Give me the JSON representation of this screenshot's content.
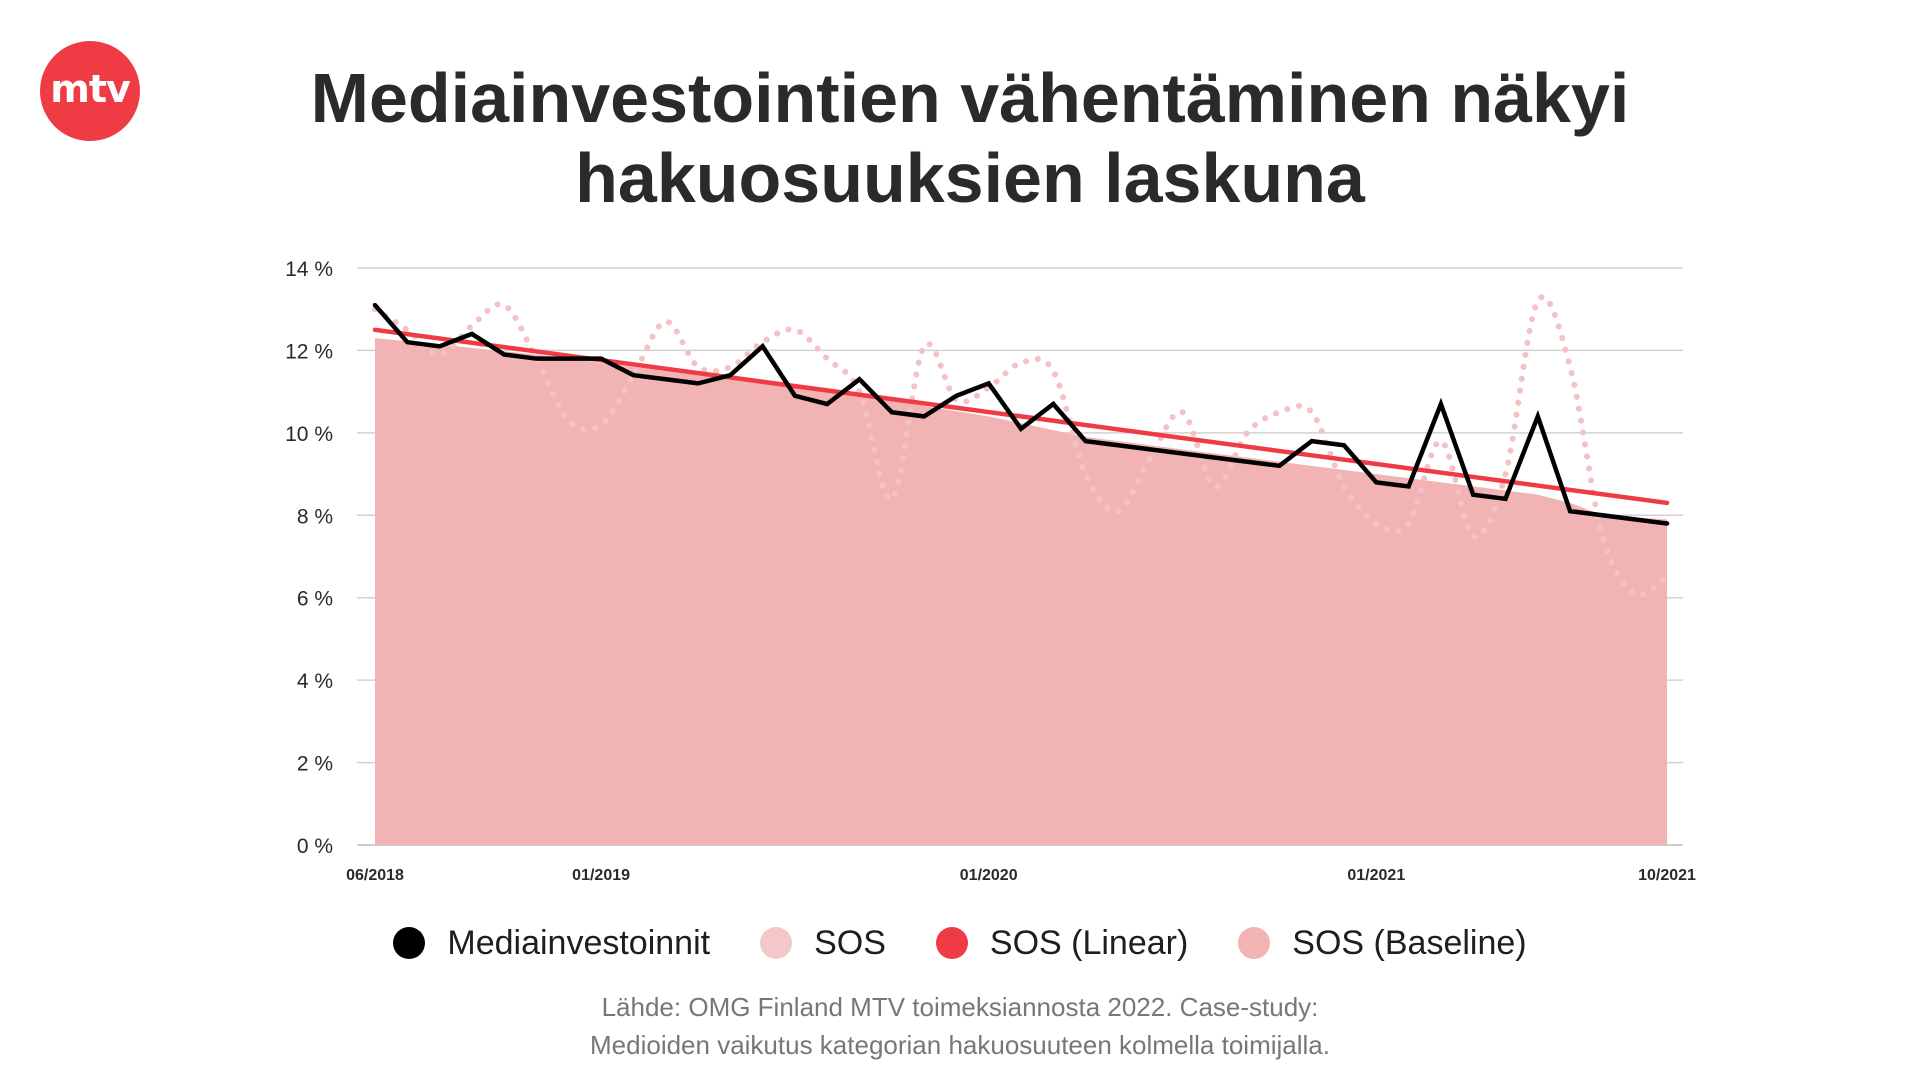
{
  "logo": {
    "text": "mtv"
  },
  "header": {
    "title_line1": "Mediainvestointien vähentäminen näkyi",
    "title_line2": "hakuosuuksien laskuna"
  },
  "colors": {
    "brand": "#ef3b43",
    "investments": "#000000",
    "sos": "#f4c2c4",
    "linear": "#ef3b43",
    "baseline": "#f2b3b5",
    "grid": "#d2d2d2"
  },
  "legend": [
    {
      "label": "Mediainvestoinnit",
      "color": "#000000"
    },
    {
      "label": "SOS",
      "color": "#f4c8c9"
    },
    {
      "label": "SOS (Linear)",
      "color": "#ef3b43"
    },
    {
      "label": "SOS (Baseline)",
      "color": "#f2b3b5"
    }
  ],
  "source": {
    "line1": "Lähde: OMG Finland MTV toimeksiannosta 2022. Case-study:",
    "line2": "Medioiden vaikutus kategorian hakuosuuteen kolmella toimijalla."
  },
  "chart_data": {
    "type": "line",
    "x_range": [
      "2018-06",
      "2021-10"
    ],
    "x_ticks": [
      {
        "label": "06/2018",
        "index": 0
      },
      {
        "label": "01/2019",
        "index": 7
      },
      {
        "label": "01/2020",
        "index": 19
      },
      {
        "label": "01/2021",
        "index": 31
      },
      {
        "label": "10/2021",
        "index": 40
      }
    ],
    "ylim": [
      0,
      14
    ],
    "y_ticks": [
      {
        "label": "0 %",
        "value": 0
      },
      {
        "label": "2 %",
        "value": 2
      },
      {
        "label": "4 %",
        "value": 4
      },
      {
        "label": "6 %",
        "value": 6
      },
      {
        "label": "8 %",
        "value": 8
      },
      {
        "label": "10 %",
        "value": 10
      },
      {
        "label": "12 %",
        "value": 12
      },
      {
        "label": "14 %",
        "value": 14
      }
    ],
    "grid": true,
    "legend_position": "bottom",
    "series": [
      {
        "name": "SOS (Baseline)",
        "style": "area",
        "x": [
          0,
          5,
          7,
          10,
          12,
          15,
          19,
          22,
          24,
          27,
          29,
          31,
          34,
          36,
          37,
          38,
          40
        ],
        "values": [
          12.3,
          11.9,
          11.7,
          11.4,
          11.2,
          10.9,
          10.4,
          9.9,
          9.7,
          9.4,
          9.2,
          9.0,
          8.7,
          8.5,
          8.3,
          8.0,
          7.9
        ]
      },
      {
        "name": "SOS",
        "style": "dotted",
        "x": [
          0,
          1,
          2,
          3,
          4,
          5,
          6,
          7,
          8,
          9,
          10,
          11,
          12,
          13,
          14,
          15,
          16,
          17,
          18,
          19,
          20,
          21,
          22,
          23,
          24,
          25,
          26,
          27,
          28,
          29,
          30,
          31,
          32,
          33,
          34,
          35,
          36,
          37,
          38,
          39,
          40
        ],
        "values": [
          13.0,
          12.5,
          11.9,
          12.6,
          13.1,
          11.8,
          10.3,
          10.2,
          11.4,
          12.7,
          11.6,
          11.6,
          12.2,
          12.5,
          11.8,
          11.0,
          8.4,
          12.1,
          10.8,
          11.1,
          11.7,
          11.5,
          9.0,
          8.1,
          9.4,
          10.5,
          8.7,
          10.0,
          10.5,
          10.5,
          8.7,
          7.8,
          7.8,
          9.8,
          7.5,
          9.0,
          13.2,
          11.6,
          7.5,
          6.1,
          6.5
        ]
      },
      {
        "name": "SOS (Linear)",
        "style": "line",
        "x": [
          0,
          40
        ],
        "values": [
          12.5,
          8.3
        ]
      },
      {
        "name": "Mediainvestoinnit",
        "style": "line",
        "x": [
          0,
          1,
          2,
          3,
          4,
          5,
          6,
          7,
          8,
          9,
          10,
          11,
          12,
          13,
          14,
          15,
          16,
          17,
          18,
          19,
          20,
          21,
          22,
          23,
          24,
          25,
          26,
          27,
          28,
          29,
          30,
          31,
          32,
          33,
          34,
          35,
          36,
          37,
          38,
          39,
          40
        ],
        "values": [
          13.1,
          12.2,
          12.1,
          12.4,
          11.9,
          11.8,
          11.8,
          11.8,
          11.4,
          11.3,
          11.2,
          11.4,
          12.1,
          10.9,
          10.7,
          11.3,
          10.5,
          10.4,
          10.9,
          11.2,
          10.1,
          10.7,
          9.8,
          9.7,
          9.6,
          9.5,
          9.4,
          9.3,
          9.2,
          9.8,
          9.7,
          8.8,
          8.7,
          10.7,
          8.5,
          8.4,
          10.4,
          8.1,
          8.0,
          7.9,
          7.8
        ]
      }
    ]
  }
}
